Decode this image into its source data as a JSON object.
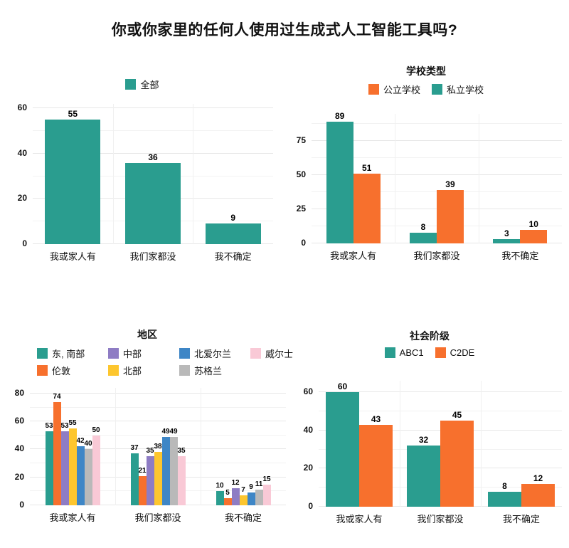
{
  "page": {
    "title": "你或你家里的任何人使用过生成式人工智能工具吗?",
    "background": "#ffffff"
  },
  "palette": {
    "teal": "#2A9D8F",
    "orange": "#F7702D",
    "purple": "#8E7CC4",
    "yellow": "#FDC62E",
    "blue": "#3E86C6",
    "gray": "#B9B9B9",
    "pink": "#F9C9D6",
    "grid_major": "#E7E7E7",
    "grid_minor": "#F2F2F2",
    "text": "#111111"
  },
  "categories": [
    "我或家人有",
    "我们家都没",
    "我不确定"
  ],
  "chart_data": [
    {
      "id": "overall",
      "type": "bar",
      "title": "",
      "legend_position": "top",
      "legend_layout": "flex",
      "legend": [
        {
          "label": "全部",
          "color": "teal"
        }
      ],
      "categories": [
        "我或家人有",
        "我们家都没",
        "我不确定"
      ],
      "series": [
        {
          "name": "全部",
          "color": "teal",
          "values": [
            55,
            36,
            9
          ]
        }
      ],
      "yticks": [
        0,
        20,
        40,
        60
      ],
      "ylim": [
        0,
        62
      ],
      "grid": true
    },
    {
      "id": "school-type",
      "type": "bar",
      "title": "学校类型",
      "legend_position": "top",
      "legend_layout": "flex",
      "legend": [
        {
          "label": "公立学校",
          "color": "orange"
        },
        {
          "label": "私立学校",
          "color": "teal"
        }
      ],
      "categories": [
        "我或家人有",
        "我们家都没",
        "我不确定"
      ],
      "series": [
        {
          "name": "私立学校",
          "color": "teal",
          "values": [
            89,
            8,
            3
          ]
        },
        {
          "name": "公立学校",
          "color": "orange",
          "values": [
            51,
            39,
            10
          ]
        }
      ],
      "yticks": [
        0,
        25,
        50,
        75
      ],
      "ylim": [
        0,
        95
      ],
      "grid": true
    },
    {
      "id": "region",
      "type": "bar",
      "title": "地区",
      "legend_position": "top",
      "legend_layout": "grid",
      "legend": [
        {
          "label": "东, 南部",
          "color": "teal"
        },
        {
          "label": "伦敦",
          "color": "orange"
        },
        {
          "label": "中部",
          "color": "purple"
        },
        {
          "label": "北部",
          "color": "yellow"
        },
        {
          "label": "北爱尔兰",
          "color": "blue"
        },
        {
          "label": "苏格兰",
          "color": "gray"
        },
        {
          "label": "威尔士",
          "color": "pink"
        }
      ],
      "categories": [
        "我或家人有",
        "我们家都没",
        "我不确定"
      ],
      "series": [
        {
          "name": "东, 南部",
          "color": "teal",
          "values": [
            53,
            37,
            10
          ]
        },
        {
          "name": "伦敦",
          "color": "orange",
          "values": [
            74,
            21,
            5
          ]
        },
        {
          "name": "中部",
          "color": "purple",
          "values": [
            53,
            35,
            12
          ]
        },
        {
          "name": "北部",
          "color": "yellow",
          "values": [
            55,
            38,
            7
          ]
        },
        {
          "name": "北爱尔兰",
          "color": "blue",
          "values": [
            42,
            49,
            9
          ]
        },
        {
          "name": "苏格兰",
          "color": "gray",
          "values": [
            40,
            49,
            11
          ]
        },
        {
          "name": "威尔士",
          "color": "pink",
          "values": [
            50,
            35,
            15
          ]
        }
      ],
      "yticks": [
        0,
        20,
        40,
        60,
        80
      ],
      "ylim": [
        0,
        84
      ],
      "grid": true
    },
    {
      "id": "social-class",
      "type": "bar",
      "title": "社会阶级",
      "legend_position": "top",
      "legend_layout": "flex",
      "legend": [
        {
          "label": "ABC1",
          "color": "teal"
        },
        {
          "label": "C2DE",
          "color": "orange"
        }
      ],
      "categories": [
        "我或家人有",
        "我们家都没",
        "我不确定"
      ],
      "series": [
        {
          "name": "ABC1",
          "color": "teal",
          "values": [
            60,
            32,
            8
          ]
        },
        {
          "name": "C2DE",
          "color": "orange",
          "values": [
            43,
            45,
            12
          ]
        }
      ],
      "yticks": [
        0,
        20,
        40,
        60
      ],
      "ylim": [
        0,
        66
      ],
      "grid": true
    }
  ]
}
